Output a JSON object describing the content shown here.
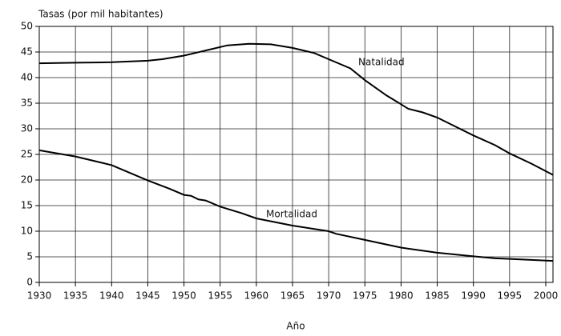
{
  "chart_data": {
    "type": "line",
    "ylabel": "Tasas (por mil habitantes)",
    "xlabel": "Año",
    "xlim": [
      1930,
      2001
    ],
    "xticks": [
      1930,
      1935,
      1940,
      1945,
      1950,
      1955,
      1960,
      1965,
      1970,
      1975,
      1980,
      1985,
      1990,
      1995,
      2000
    ],
    "ylim": [
      0,
      50
    ],
    "yticks": [
      0,
      5,
      10,
      15,
      20,
      25,
      30,
      35,
      40,
      45,
      50
    ],
    "grid": true,
    "annotations": [
      "Natalidad",
      "Mortalidad"
    ],
    "series": [
      {
        "color": "#000000",
        "x": [
          1930,
          1935,
          1940,
          1945,
          1947,
          1950,
          1953,
          1956,
          1959,
          1962,
          1965,
          1968,
          1970,
          1973,
          1975,
          1978,
          1980,
          1981,
          1983,
          1985,
          1987,
          1990,
          1993,
          1995,
          1998,
          2001
        ],
        "values": [
          42.8,
          42.9,
          43.0,
          43.3,
          43.6,
          44.3,
          45.3,
          46.3,
          46.6,
          46.5,
          45.8,
          44.8,
          43.6,
          41.8,
          39.5,
          36.5,
          34.8,
          33.9,
          33.2,
          32.2,
          30.8,
          28.7,
          26.8,
          25.2,
          23.2,
          21.0
        ]
      },
      {
        "color": "#000000",
        "x": [
          1930,
          1935,
          1940,
          1945,
          1948,
          1950,
          1951,
          1952,
          1953,
          1955,
          1958,
          1960,
          1965,
          1970,
          1971,
          1975,
          1980,
          1985,
          1990,
          1993,
          1995,
          2001
        ],
        "values": [
          25.8,
          24.6,
          22.9,
          19.9,
          18.3,
          17.1,
          16.9,
          16.2,
          16.0,
          14.8,
          13.5,
          12.5,
          11.1,
          10.0,
          9.5,
          8.3,
          6.8,
          5.8,
          5.1,
          4.7,
          4.6,
          4.2
        ]
      }
    ]
  }
}
